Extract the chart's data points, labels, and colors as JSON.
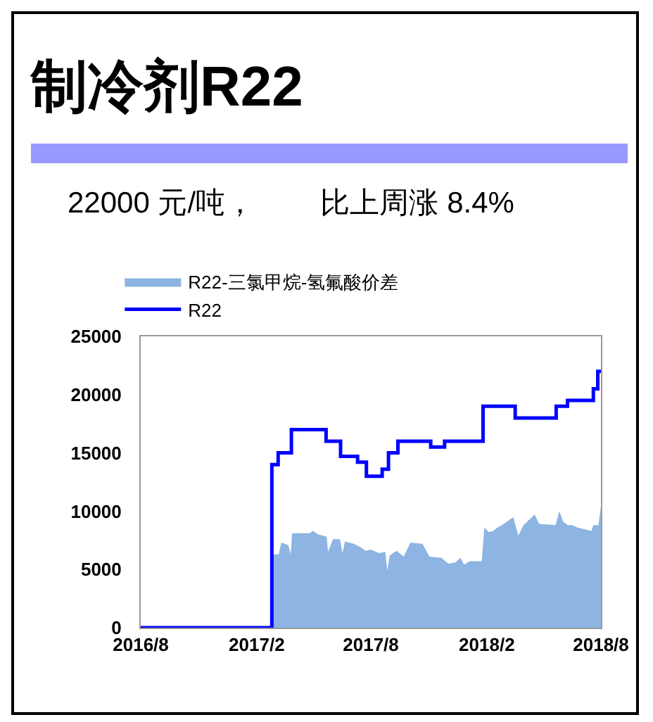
{
  "chart_data": {
    "type": "line",
    "title": "制冷剂R22",
    "subtitle": "22000 元/吨，        比上周涨 8.4%",
    "xlim": [
      "2016-08-01",
      "2018-08-01"
    ],
    "xticks": [
      {
        "value": "2016-08-01",
        "label": "2016/8"
      },
      {
        "value": "2017-02-01",
        "label": "2017/2"
      },
      {
        "value": "2017-08-01",
        "label": "2017/8"
      },
      {
        "value": "2018-02-01",
        "label": "2018/2"
      },
      {
        "value": "2018-08-01",
        "label": "2018/8"
      }
    ],
    "ylim": [
      0,
      25000
    ],
    "yticks": [
      0,
      5000,
      10000,
      15000,
      20000,
      25000
    ],
    "grid": false,
    "legend": "top",
    "series": [
      {
        "name": "R22-三氯甲烷-氢氟酸价差",
        "type": "area",
        "color": "#8db4e2",
        "x": [
          "2017-02-22",
          "2017-02-27",
          "2017-03-08",
          "2017-03-12",
          "2017-03-23",
          "2017-03-27",
          "2017-03-29",
          "2017-04-26",
          "2017-05-01",
          "2017-05-10",
          "2017-05-23",
          "2017-05-25",
          "2017-06-02",
          "2017-06-13",
          "2017-06-17",
          "2017-06-21",
          "2017-07-05",
          "2017-07-16",
          "2017-07-24",
          "2017-08-01",
          "2017-08-14",
          "2017-08-24",
          "2017-08-27",
          "2017-08-31",
          "2017-09-11",
          "2017-09-22",
          "2017-10-03",
          "2017-10-22",
          "2017-11-02",
          "2017-11-21",
          "2017-12-02",
          "2017-12-13",
          "2017-12-21",
          "2017-12-27",
          "2018-01-05",
          "2018-01-24",
          "2018-01-28",
          "2018-02-04",
          "2018-02-11",
          "2018-02-18",
          "2018-02-25",
          "2018-03-15",
          "2018-03-23",
          "2018-03-31",
          "2018-04-18",
          "2018-04-25",
          "2018-05-21",
          "2018-05-27",
          "2018-06-02",
          "2018-06-09",
          "2018-06-17",
          "2018-06-24",
          "2018-07-17",
          "2018-07-20",
          "2018-07-28",
          "2018-08-01"
        ],
        "values": [
          0,
          6300,
          6300,
          7300,
          7100,
          6300,
          8100,
          8100,
          8300,
          8000,
          7800,
          6500,
          7600,
          7600,
          6400,
          7400,
          7200,
          6900,
          6600,
          6700,
          6400,
          6500,
          4900,
          6200,
          6600,
          6100,
          7300,
          7200,
          6100,
          6000,
          5500,
          5600,
          6000,
          5400,
          5700,
          5700,
          8600,
          8200,
          8300,
          8600,
          8800,
          9500,
          7900,
          8800,
          9700,
          8900,
          8800,
          10000,
          9100,
          8800,
          8800,
          8600,
          8300,
          8800,
          8800,
          10400
        ]
      },
      {
        "name": "R22",
        "type": "step",
        "color": "#0000ff",
        "x": [
          "2016-08-01",
          "2017-02-22",
          "2017-02-25",
          "2017-03-07",
          "2017-03-28",
          "2017-05-22",
          "2017-06-14",
          "2017-07-11",
          "2017-07-25",
          "2017-08-19",
          "2017-08-29",
          "2017-09-13",
          "2017-11-04",
          "2017-11-26",
          "2018-01-26",
          "2018-03-18",
          "2018-05-22",
          "2018-06-09",
          "2018-07-20",
          "2018-07-27",
          "2018-08-01"
        ],
        "values": [
          0,
          0,
          14000,
          15000,
          17000,
          16000,
          14700,
          14200,
          13000,
          13600,
          15000,
          16000,
          15500,
          16000,
          19000,
          18000,
          19000,
          19500,
          20500,
          22000,
          22000
        ]
      }
    ]
  }
}
